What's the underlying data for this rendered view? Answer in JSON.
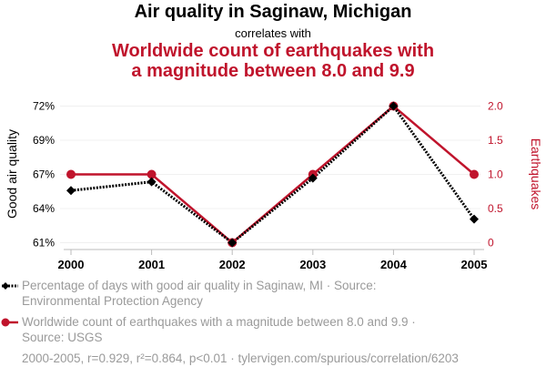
{
  "header": {
    "title": "Air quality in Saginaw, Michigan",
    "subtitle": "correlates with",
    "title2_line1": "Worldwide count of earthquakes with",
    "title2_line2": "a magnitude between 8.0 and 9.9"
  },
  "chart_data": {
    "type": "line",
    "x": [
      2000,
      2001,
      2002,
      2003,
      2004,
      2005
    ],
    "categories": [
      "2000",
      "2001",
      "2002",
      "2003",
      "2004",
      "2005"
    ],
    "series": [
      {
        "name": "Percentage of days with good air quality in Saginaw, MI · Source: Environmental Protection Agency",
        "axis": "left",
        "values": [
          65.2,
          65.9,
          61.0,
          66.2,
          72.0,
          62.9
        ],
        "color": "#000000",
        "marker": "diamond",
        "style": "dotted"
      },
      {
        "name": "Worldwide count of earthquakes with a magnitude between 8.0 and 9.9 · Source: USGS",
        "axis": "right",
        "values": [
          1,
          1,
          0,
          1,
          2,
          1
        ],
        "color": "#c0142c",
        "marker": "circle",
        "style": "solid"
      }
    ],
    "ylabel": "Good air quality",
    "y2label": "Earthquakes",
    "ylim": [
      61,
      72
    ],
    "y2lim": [
      0,
      2
    ],
    "yticks": [
      "72%",
      "69%",
      "67%",
      "64%",
      "61%"
    ],
    "y2ticks": [
      "2.0",
      "1.5",
      "1.0",
      "0.5",
      "0"
    ],
    "grid": true
  },
  "legend": {
    "item1_line1": "Percentage of days with good air quality in Saginaw, MI · Source:",
    "item1_line2": "Environmental Protection Agency",
    "item2_line1": "Worldwide count of earthquakes with a magnitude between 8.0 and 9.9 ·",
    "item2_line2": "Source: USGS"
  },
  "footer": "2000-2005, r=0.929, r²=0.864, p<0.01 · tylervigen.com/spurious/correlation/6203"
}
